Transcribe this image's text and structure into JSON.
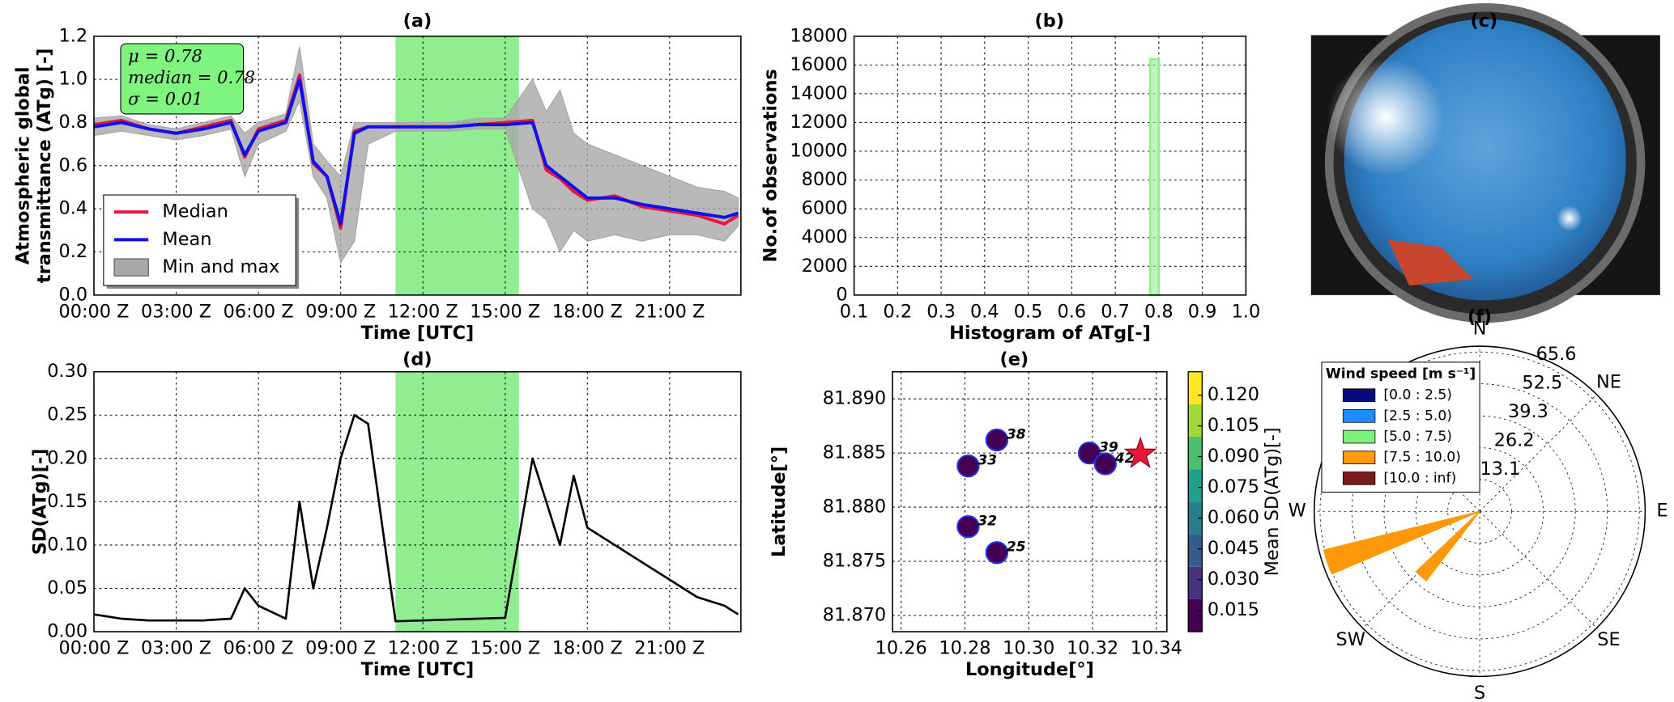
{
  "chart_data": [
    {
      "type": "line",
      "title": "(a)",
      "xlabel": "Time [UTC]",
      "ylabel": [
        "Atmospheric  global",
        "transmittance (ATg) [-]"
      ],
      "xlim": [
        0,
        23.6
      ],
      "xticks": [
        {
          "value": 0,
          "label": "00:00 Z"
        },
        {
          "value": 3,
          "label": "03:00 Z"
        },
        {
          "value": 6,
          "label": "06:00 Z"
        },
        {
          "value": 9,
          "label": "09:00 Z"
        },
        {
          "value": 12,
          "label": "12:00 Z"
        },
        {
          "value": 15,
          "label": "15:00 Z"
        },
        {
          "value": 18,
          "label": "18:00 Z"
        },
        {
          "value": 21,
          "label": "21:00 Z"
        }
      ],
      "ylim": [
        0,
        1.2
      ],
      "yticks": [
        {
          "value": 0,
          "label": "0.0"
        },
        0.2,
        0.4,
        0.6,
        0.8,
        {
          "value": 1,
          "label": "1.0"
        },
        1.2
      ],
      "grid": true,
      "legend": "lower left",
      "span": [
        11.0,
        15.5
      ],
      "span_color": "#90ee90",
      "annotation": [
        "μ = 0.78",
        "median = 0.78",
        "σ = 0.01"
      ],
      "x": [
        0,
        1,
        2,
        3,
        4,
        5,
        5.5,
        6,
        7,
        7.5,
        8,
        8.5,
        9,
        9.5,
        10,
        11,
        12,
        13,
        14,
        15,
        16,
        16.5,
        17,
        17.5,
        18,
        19,
        20,
        21,
        22,
        23,
        23.5
      ],
      "range_series": {
        "name": "Min and max",
        "color": "#a8a8a8",
        "high": [
          0.82,
          0.83,
          0.79,
          0.77,
          0.8,
          0.83,
          0.75,
          0.8,
          0.84,
          1.15,
          0.7,
          0.62,
          0.55,
          0.8,
          0.8,
          0.8,
          0.8,
          0.8,
          0.82,
          0.82,
          1.0,
          0.85,
          0.95,
          0.75,
          0.7,
          0.65,
          0.6,
          0.55,
          0.5,
          0.48,
          0.45
        ],
        "low": [
          0.74,
          0.76,
          0.74,
          0.72,
          0.74,
          0.77,
          0.55,
          0.7,
          0.76,
          0.9,
          0.55,
          0.45,
          0.15,
          0.25,
          0.7,
          0.76,
          0.76,
          0.76,
          0.77,
          0.77,
          0.4,
          0.35,
          0.2,
          0.3,
          0.25,
          0.28,
          0.25,
          0.28,
          0.28,
          0.25,
          0.32
        ]
      },
      "series": [
        {
          "name": "Median",
          "color": "#e8173a",
          "values": [
            0.79,
            0.81,
            0.77,
            0.75,
            0.78,
            0.81,
            0.64,
            0.77,
            0.81,
            1.02,
            0.61,
            0.55,
            0.31,
            0.76,
            0.78,
            0.78,
            0.78,
            0.78,
            0.79,
            0.8,
            0.81,
            0.58,
            0.54,
            0.48,
            0.44,
            0.46,
            0.41,
            0.39,
            0.37,
            0.33,
            0.37
          ]
        },
        {
          "name": "Mean",
          "color": "#1010ee",
          "values": [
            0.78,
            0.8,
            0.77,
            0.75,
            0.77,
            0.8,
            0.65,
            0.76,
            0.8,
            1.0,
            0.62,
            0.55,
            0.33,
            0.75,
            0.78,
            0.78,
            0.78,
            0.78,
            0.79,
            0.79,
            0.8,
            0.6,
            0.55,
            0.5,
            0.45,
            0.45,
            0.42,
            0.4,
            0.38,
            0.36,
            0.38
          ]
        }
      ]
    },
    {
      "type": "histogram",
      "title": "(b)",
      "xlabel": "Histogram of ATg[-]",
      "ylabel": [
        "No.of observations"
      ],
      "xlim": [
        0.1,
        1.0
      ],
      "xticks": [
        0.1,
        0.2,
        0.3,
        0.4,
        0.5,
        0.6,
        0.7,
        0.8,
        0.9,
        {
          "value": 1,
          "label": "1.0"
        }
      ],
      "ylim": [
        0,
        18000
      ],
      "yticks": [
        0,
        2000,
        4000,
        6000,
        8000,
        10000,
        12000,
        14000,
        16000,
        18000
      ],
      "grid": true,
      "color": "#90ee90",
      "bins": [
        0.78,
        0.8
      ],
      "values": [
        16400
      ]
    },
    {
      "type": "image",
      "title": "(c)"
    },
    {
      "type": "line",
      "title": "(d)",
      "xlabel": "Time [UTC]",
      "ylabel": [
        "SD(ATg)[-]"
      ],
      "xlim": [
        0,
        23.6
      ],
      "xticks": [
        {
          "value": 0,
          "label": "00:00 Z"
        },
        {
          "value": 3,
          "label": "03:00 Z"
        },
        {
          "value": 6,
          "label": "06:00 Z"
        },
        {
          "value": 9,
          "label": "09:00 Z"
        },
        {
          "value": 12,
          "label": "12:00 Z"
        },
        {
          "value": 15,
          "label": "15:00 Z"
        },
        {
          "value": 18,
          "label": "18:00 Z"
        },
        {
          "value": 21,
          "label": "21:00 Z"
        }
      ],
      "ylim": [
        0,
        0.3
      ],
      "yticks": [
        {
          "value": 0,
          "label": "0.00"
        },
        0.05,
        {
          "value": 0.1,
          "label": "0.10"
        },
        0.15,
        {
          "value": 0.2,
          "label": "0.20"
        },
        0.25,
        {
          "value": 0.3,
          "label": "0.30"
        }
      ],
      "grid": true,
      "span": [
        11.0,
        15.5
      ],
      "span_color": "#90ee90",
      "x": [
        0,
        1,
        2,
        3,
        4,
        5,
        5.5,
        6,
        7,
        7.5,
        8,
        8.5,
        9,
        9.5,
        10,
        11,
        12,
        13,
        14,
        15,
        16,
        16.5,
        17,
        17.5,
        18,
        19,
        20,
        21,
        22,
        23,
        23.5
      ],
      "series": [
        {
          "color": "#000000",
          "values": [
            0.02,
            0.015,
            0.013,
            0.013,
            0.013,
            0.015,
            0.05,
            0.03,
            0.015,
            0.15,
            0.05,
            0.12,
            0.2,
            0.25,
            0.24,
            0.012,
            0.013,
            0.014,
            0.015,
            0.016,
            0.2,
            0.15,
            0.1,
            0.18,
            0.12,
            0.1,
            0.08,
            0.06,
            0.04,
            0.03,
            0.02
          ]
        }
      ]
    },
    {
      "type": "scatter",
      "title": "(e)",
      "xlabel": "Longitude[°]",
      "ylabel": [
        "Latitude[°]"
      ],
      "xlim": [
        10.2573,
        10.3433
      ],
      "xticks": [
        10.26,
        10.28,
        {
          "value": 10.3,
          "label": "10.30"
        },
        10.32,
        10.34
      ],
      "ylim": [
        81.8685,
        81.8925
      ],
      "yticks": [
        {
          "value": 81.87,
          "label": "81.870"
        },
        81.875,
        {
          "value": 81.88,
          "label": "81.880"
        },
        81.885,
        {
          "value": 81.89,
          "label": "81.890"
        }
      ],
      "grid": true,
      "x": [
        10.29,
        10.281,
        10.319,
        10.324,
        10.281,
        10.29
      ],
      "y": [
        81.8862,
        81.8838,
        81.885,
        81.884,
        81.8782,
        81.8758
      ],
      "point_labels": [
        "38",
        "33",
        "39",
        "42",
        "32",
        "25"
      ],
      "color_values": [
        0.012,
        0.012,
        0.012,
        0.012,
        0.012,
        0.012
      ],
      "edge_color": "#2233ee",
      "star": {
        "x": 10.335,
        "y": 81.8849,
        "color": "#e8173a"
      },
      "colorbar": {
        "label": "Mean SD(ATg)[-]",
        "lim": [
          0.0046,
          0.1314
        ],
        "ticks": [
          0.015,
          {
            "value": 0.03,
            "label": "0.030"
          },
          0.045,
          {
            "value": 0.06,
            "label": "0.060"
          },
          0.075,
          {
            "value": 0.09,
            "label": "0.090"
          },
          0.105,
          {
            "value": 0.12,
            "label": "0.120"
          }
        ],
        "colors": [
          "#440154",
          "#46327e",
          "#365c8d",
          "#277f8e",
          "#1fa187",
          "#4ac16d",
          "#a0da39",
          "#fde725"
        ]
      }
    },
    {
      "type": "windrose",
      "title": "(f)",
      "rlim": [
        0,
        68
      ],
      "rticks": [
        13.1,
        26.2,
        39.3,
        52.5,
        65.6
      ],
      "direction_labels": [
        "N",
        "NE",
        "E",
        "SE",
        "S",
        "SW",
        "W",
        null
      ],
      "sector_width": 9,
      "legend_title": "Wind speed [m s⁻¹]",
      "series": [
        {
          "name": "[0.0 : 2.5)",
          "color": "#0a0a80",
          "directions": [],
          "values": []
        },
        {
          "name": "[2.5 : 5.0)",
          "color": "#1e8cff",
          "directions": [],
          "values": []
        },
        {
          "name": "[5.0 : 7.5)",
          "color": "#7ef07e",
          "directions": [
            240
          ],
          "values": [
            2
          ]
        },
        {
          "name": "[7.5 : 10.0)",
          "color": "#ff990a",
          "directions": [
            251.5,
            222
          ],
          "values": [
            66,
            36
          ]
        },
        {
          "name": "[10.0 : inf)",
          "color": "#7a1a1a",
          "directions": [],
          "values": []
        }
      ]
    }
  ]
}
